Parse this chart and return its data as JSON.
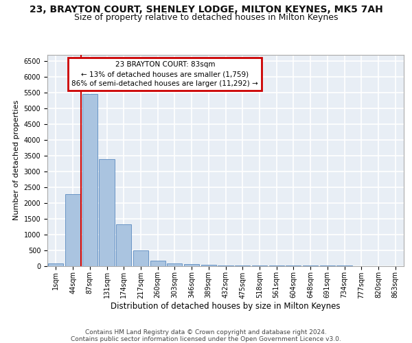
{
  "title": "23, BRAYTON COURT, SHENLEY LODGE, MILTON KEYNES, MK5 7AH",
  "subtitle": "Size of property relative to detached houses in Milton Keynes",
  "xlabel": "Distribution of detached houses by size in Milton Keynes",
  "ylabel": "Number of detached properties",
  "footer_line1": "Contains HM Land Registry data © Crown copyright and database right 2024.",
  "footer_line2": "Contains public sector information licensed under the Open Government Licence v3.0.",
  "categories": [
    "1sqm",
    "44sqm",
    "87sqm",
    "131sqm",
    "174sqm",
    "217sqm",
    "260sqm",
    "303sqm",
    "346sqm",
    "389sqm",
    "432sqm",
    "475sqm",
    "518sqm",
    "561sqm",
    "604sqm",
    "648sqm",
    "691sqm",
    "734sqm",
    "777sqm",
    "820sqm",
    "863sqm"
  ],
  "values": [
    70,
    2270,
    5450,
    3380,
    1310,
    480,
    165,
    80,
    55,
    40,
    15,
    10,
    5,
    3,
    2,
    1,
    1,
    1,
    0,
    0,
    0
  ],
  "bar_color": "#aac4e0",
  "bar_edge_color": "#5a8abf",
  "red_line_color": "#cc0000",
  "annotation_line1": "23 BRAYTON COURT: 83sqm",
  "annotation_line2": "← 13% of detached houses are smaller (1,759)",
  "annotation_line3": "86% of semi-detached houses are larger (11,292) →",
  "annotation_box_edgecolor": "#cc0000",
  "annotation_box_facecolor": "#ffffff",
  "ylim_max": 6700,
  "yticks": [
    0,
    500,
    1000,
    1500,
    2000,
    2500,
    3000,
    3500,
    4000,
    4500,
    5000,
    5500,
    6000,
    6500
  ],
  "background_color": "#e8eef5",
  "grid_color": "#ffffff",
  "title_fontsize": 10,
  "subtitle_fontsize": 9,
  "xlabel_fontsize": 8.5,
  "ylabel_fontsize": 8,
  "tick_fontsize": 7,
  "annotation_fontsize": 7.5,
  "footer_fontsize": 6.5
}
